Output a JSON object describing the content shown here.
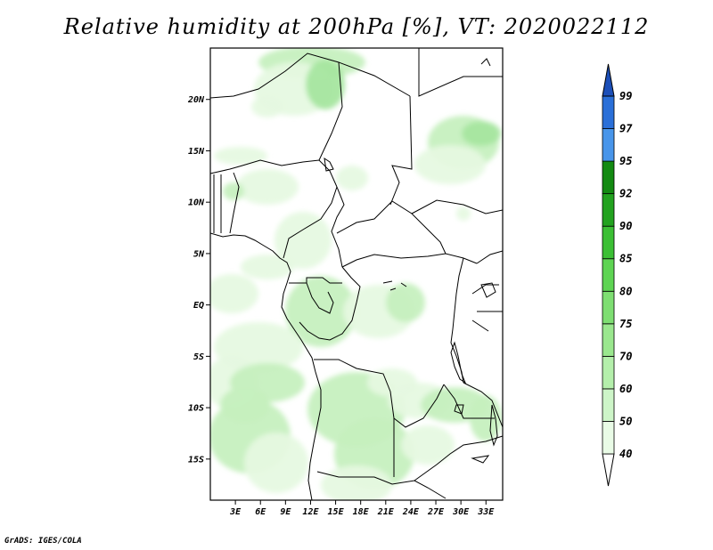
{
  "title": "Relative humidity at 200hPa [%], VT: 2020022112",
  "credit": "GrADS: IGES/COLA",
  "map": {
    "region": "Central Africa",
    "lon_range": [
      0,
      35
    ],
    "lat_range": [
      -19,
      25
    ],
    "lat_ticks": [
      {
        "value": 20,
        "label": "20N"
      },
      {
        "value": 15,
        "label": "15N"
      },
      {
        "value": 10,
        "label": "10N"
      },
      {
        "value": 5,
        "label": "5N"
      },
      {
        "value": 0,
        "label": "EQ"
      },
      {
        "value": -5,
        "label": "5S"
      },
      {
        "value": -10,
        "label": "10S"
      },
      {
        "value": -15,
        "label": "15S"
      }
    ],
    "lon_ticks": [
      {
        "value": 3,
        "label": "3E"
      },
      {
        "value": 6,
        "label": "6E"
      },
      {
        "value": 9,
        "label": "9E"
      },
      {
        "value": 12,
        "label": "12E"
      },
      {
        "value": 15,
        "label": "15E"
      },
      {
        "value": 18,
        "label": "18E"
      },
      {
        "value": 21,
        "label": "21E"
      },
      {
        "value": 24,
        "label": "24E"
      },
      {
        "value": 27,
        "label": "27E"
      },
      {
        "value": 30,
        "label": "30E"
      },
      {
        "value": 33,
        "label": "33E"
      }
    ],
    "shading_color_low": "#e6f9e2",
    "shading_color_mid": "#c6f0bf",
    "shading_color_high": "#a7e6a0",
    "border_color": "#000000"
  },
  "colorbar": {
    "levels": [
      {
        "label": "40",
        "color": "#ffffff"
      },
      {
        "label": "50",
        "color": "#e9fbe6"
      },
      {
        "label": "60",
        "color": "#cdf5c8"
      },
      {
        "label": "70",
        "color": "#b4efab"
      },
      {
        "label": "75",
        "color": "#9ae78e"
      },
      {
        "label": "80",
        "color": "#7ede72"
      },
      {
        "label": "85",
        "color": "#5ed453"
      },
      {
        "label": "90",
        "color": "#3bbf34"
      },
      {
        "label": "92",
        "color": "#22a21f"
      },
      {
        "label": "95",
        "color": "#138a12"
      },
      {
        "label": "97",
        "color": "#4895ea"
      },
      {
        "label": "99",
        "color": "#2a6fd8"
      }
    ],
    "top_color": "#1c4fb8"
  }
}
